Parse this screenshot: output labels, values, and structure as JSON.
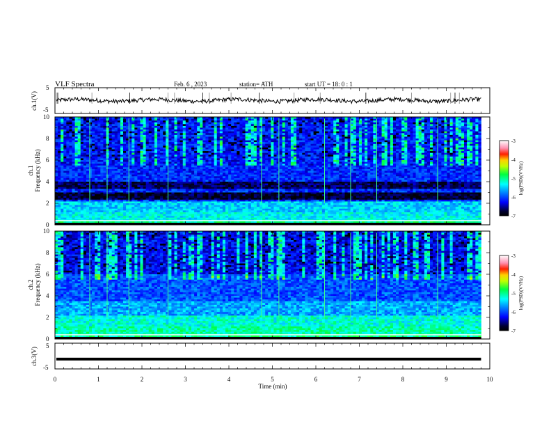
{
  "header": {
    "title": "VLF  Spectra",
    "date": "Feb. 6  , 2023",
    "station": "station= ATH",
    "start": "start  UT  =   18: 0  : 1"
  },
  "chart_data": [
    {
      "id": "ch1-waveform",
      "type": "line",
      "ylabel": "ch.1(V)",
      "yticks": [
        "5",
        "-5"
      ],
      "ylim": [
        -5,
        5
      ],
      "xlim": [
        0,
        10
      ],
      "trace_level": 0.1,
      "trace_end": 9.8,
      "color": "#000000"
    },
    {
      "id": "ch1-spectrogram",
      "type": "heatmap",
      "ylabel": "ch.1",
      "ylabel2": "Frequency  (kHz)",
      "yticks": [
        "0",
        "2",
        "4",
        "6",
        "8",
        "10"
      ],
      "ylim": [
        0,
        10
      ],
      "xlim": [
        0,
        10
      ],
      "data_end": 9.8,
      "colorbar": {
        "label": "log(PSD)(V²/Hz)",
        "ticks": [
          "-3",
          "-4",
          "-5",
          "-6",
          "-7"
        ],
        "range": [
          -7,
          -3
        ]
      }
    },
    {
      "id": "ch2-spectrogram",
      "type": "heatmap",
      "ylabel": "ch.2",
      "ylabel2": "Frequency  (kHz)",
      "yticks": [
        "0",
        "2",
        "4",
        "6",
        "8",
        "10"
      ],
      "ylim": [
        0,
        10
      ],
      "xlim": [
        0,
        10
      ],
      "data_end": 9.8,
      "colorbar": {
        "label": "log(PSD)(V²/Hz)",
        "ticks": [
          "-3",
          "-4",
          "-5",
          "-6",
          "-7"
        ],
        "range": [
          -7,
          -3
        ]
      }
    },
    {
      "id": "ch3-waveform",
      "type": "line",
      "ylabel": "ch.3(V)",
      "yticks": [
        "5",
        "-5"
      ],
      "ylim": [
        -5,
        5
      ],
      "xlim": [
        0,
        10
      ],
      "trace_level": -1.2,
      "trace_end": 9.8,
      "color": "#000000"
    }
  ],
  "xaxis": {
    "label": "Time  (min)",
    "ticks": [
      "0",
      "1",
      "2",
      "3",
      "4",
      "5",
      "6",
      "7",
      "8",
      "9",
      "10"
    ],
    "range": [
      0,
      10
    ]
  },
  "colors": {
    "background": "#ffffff",
    "spectrogram_low": "#000010",
    "spectrogram_high": "#ffffff",
    "frame": "#000000"
  }
}
